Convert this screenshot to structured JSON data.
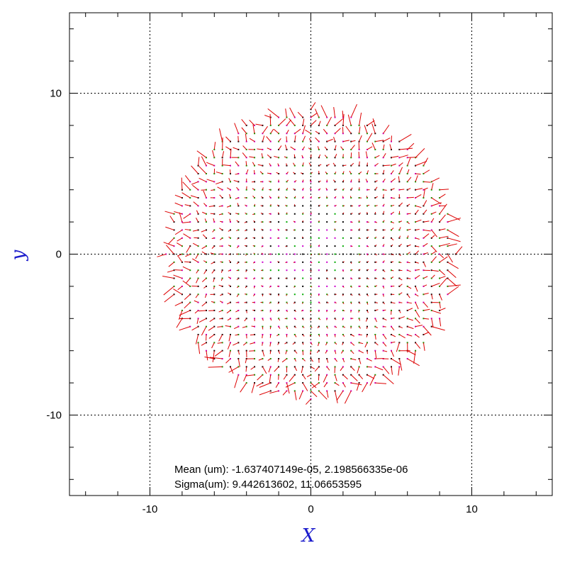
{
  "chart_data": {
    "type": "scatter",
    "title": "",
    "xlabel": "X",
    "ylabel": "y",
    "xlim": [
      -15,
      15
    ],
    "ylim": [
      -15,
      15
    ],
    "x_ticks": [
      -10,
      0,
      10
    ],
    "y_ticks": [
      -10,
      0,
      10
    ],
    "x_tick_labels": [
      "-10",
      "0",
      "10"
    ],
    "y_tick_labels": [
      "-10",
      "0",
      "10"
    ],
    "grid": true,
    "grid_lines_x": [
      -10,
      0,
      10
    ],
    "grid_lines_y": [
      -10,
      0,
      10
    ],
    "grid_style": "dotted",
    "minor_tick_step": 2,
    "axis_title_color": "#1a1acc",
    "point_colors": [
      "#00aa00",
      "#cc00cc",
      "#000000"
    ],
    "vector_color": "#dd0000",
    "sampling": {
      "grid_spacing": 0.5,
      "radius": 9.0
    },
    "stats": {
      "mean_label": "Mean (um): -1.637407149e-05, 2.198566335e-06",
      "sigma_label": "Sigma(um): 9.442613602, 11.06653595",
      "mean_x": -1.637407149e-05,
      "mean_y": 2.198566335e-06,
      "sigma_x": 9.442613602,
      "sigma_y": 11.06653595
    }
  }
}
